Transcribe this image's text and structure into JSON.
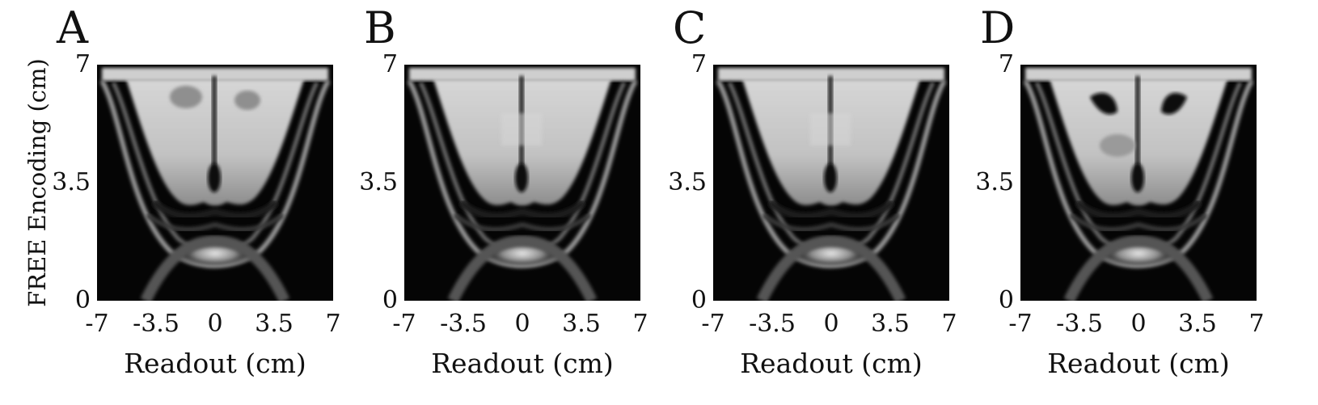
{
  "figure": {
    "ylabel": "FREE Encoding (cm)",
    "panels": [
      {
        "letter": "A",
        "xlabel": "Readout (cm)",
        "variant": "a"
      },
      {
        "letter": "B",
        "xlabel": "Readout (cm)",
        "variant": "b"
      },
      {
        "letter": "C",
        "xlabel": "Readout (cm)",
        "variant": "c"
      },
      {
        "letter": "D",
        "xlabel": "Readout (cm)",
        "variant": "d"
      }
    ],
    "xticks": [
      "-7",
      "-3.5",
      "0",
      "3.5",
      "7"
    ],
    "yticks": [
      "7",
      "3.5",
      "0"
    ]
  }
}
